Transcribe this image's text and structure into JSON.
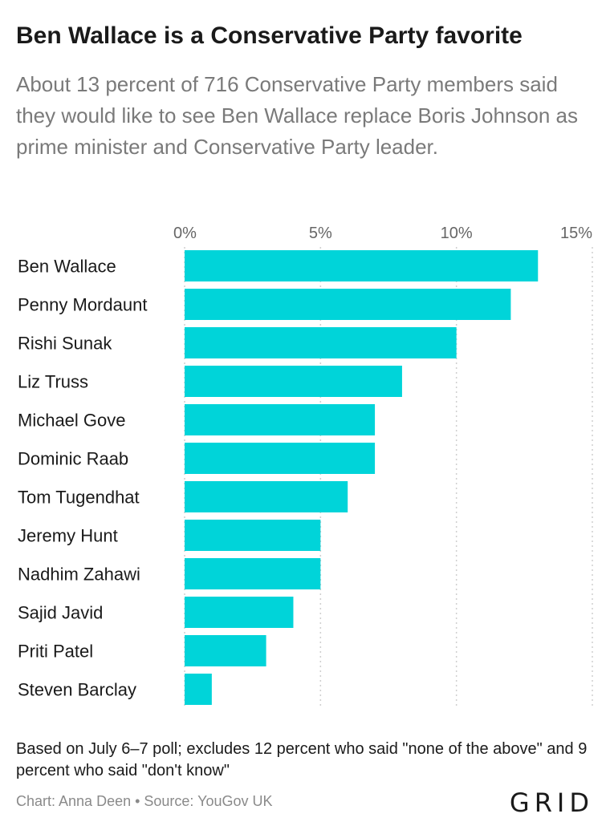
{
  "header": {
    "title": "Ben Wallace is a Conservative Party favorite",
    "subtitle": "About 13 percent of 716 Conservative Party members said they would like to see Ben Wallace replace Boris Johnson as prime minister and Conservative Party leader."
  },
  "chart_data": {
    "type": "bar",
    "orientation": "horizontal",
    "categories": [
      "Ben Wallace",
      "Penny Mordaunt",
      "Rishi Sunak",
      "Liz Truss",
      "Michael Gove",
      "Dominic Raab",
      "Tom Tugendhat",
      "Jeremy Hunt",
      "Nadhim Zahawi",
      "Sajid Javid",
      "Priti Patel",
      "Steven Barclay"
    ],
    "values": [
      13,
      12,
      10,
      8,
      7,
      7,
      6,
      5,
      5,
      4,
      3,
      1
    ],
    "xlim": [
      0,
      15
    ],
    "xticks": [
      0,
      5,
      10,
      15
    ],
    "xtick_labels": [
      "0%",
      "5%",
      "10%",
      "15%"
    ],
    "axis_position": "top",
    "grid": true,
    "bar_color": "#00d4d9"
  },
  "footer": {
    "note": "Based on July 6–7 poll; excludes 12 percent who said \"none of the above\" and 9 percent who said \"don't know\"",
    "credit": "Chart: Anna Deen • Source: YouGov UK",
    "logo": "GRID"
  }
}
